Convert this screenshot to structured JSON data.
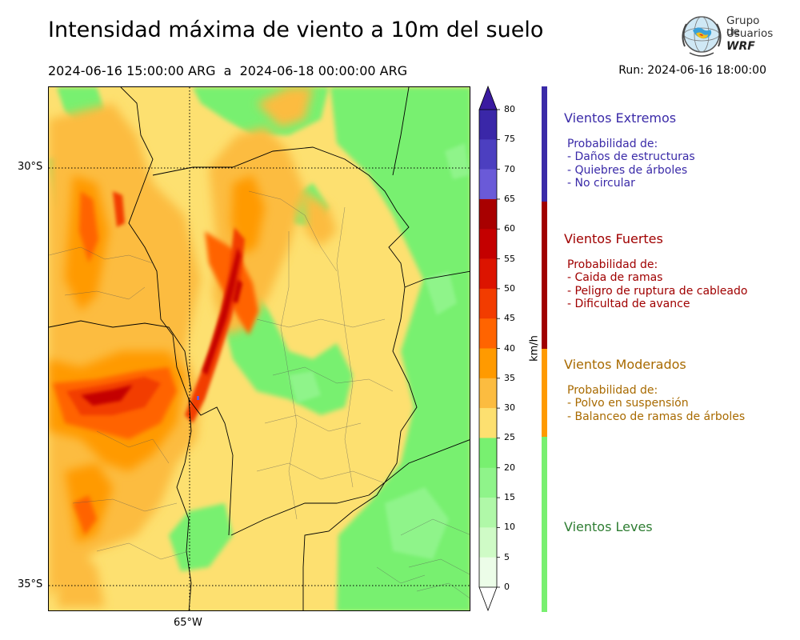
{
  "title": "Intensidad máxima de viento a 10m del suelo",
  "period": "2024-06-16 15:00:00 ARG  a  2024-06-18 00:00:00 ARG",
  "run": "Run: 2024-06-16 18:00:00",
  "logo": {
    "line1": "Grupo de",
    "line2": "Usuarios",
    "line3": "WRF"
  },
  "map": {
    "lat_labels": [
      "30°S",
      "35°S"
    ],
    "lon_labels": [
      "65°W"
    ]
  },
  "colorbar": {
    "unit": "km/h",
    "ticks": [
      "80",
      "75",
      "70",
      "65",
      "60",
      "55",
      "50",
      "45",
      "40",
      "35",
      "30",
      "25",
      "20",
      "15",
      "10",
      "5",
      "0"
    ],
    "colors": [
      "#3a27a8",
      "#4c3fc0",
      "#6a5ad8",
      "#a80000",
      "#c40000",
      "#dc1400",
      "#f23c00",
      "#ff6400",
      "#ff9a00",
      "#fcbc40",
      "#fde070",
      "#78f070",
      "#8ff48a",
      "#b0f8a8",
      "#cffbc6",
      "#ecfde8"
    ],
    "extend_top_color": "#3a1aa0"
  },
  "categories": [
    {
      "title": "Vientos Extremos",
      "color": "#3a2aa8",
      "subtitle": "Probabilidad de:",
      "items": [
        "- Daños de estructuras",
        "- Quiebres de árboles",
        "- No circular"
      ]
    },
    {
      "title": "Vientos Fuertes",
      "color": "#a00000",
      "subtitle": "Probabilidad de:",
      "items": [
        "- Caida de ramas",
        "- Peligro de ruptura de cableado",
        "- Dificultad de avance"
      ]
    },
    {
      "title": "Vientos Moderados",
      "color": "#a86a00",
      "subtitle": "Probabilidad de:",
      "items": [
        "- Polvo en suspensión",
        "- Balanceo de ramas de árboles"
      ]
    },
    {
      "title": "Vientos Leves",
      "color": "#2e7d32"
    }
  ],
  "category_bar_colors": [
    "#3a2aa8",
    "#a00000",
    "#ff9a00",
    "#78f070"
  ]
}
